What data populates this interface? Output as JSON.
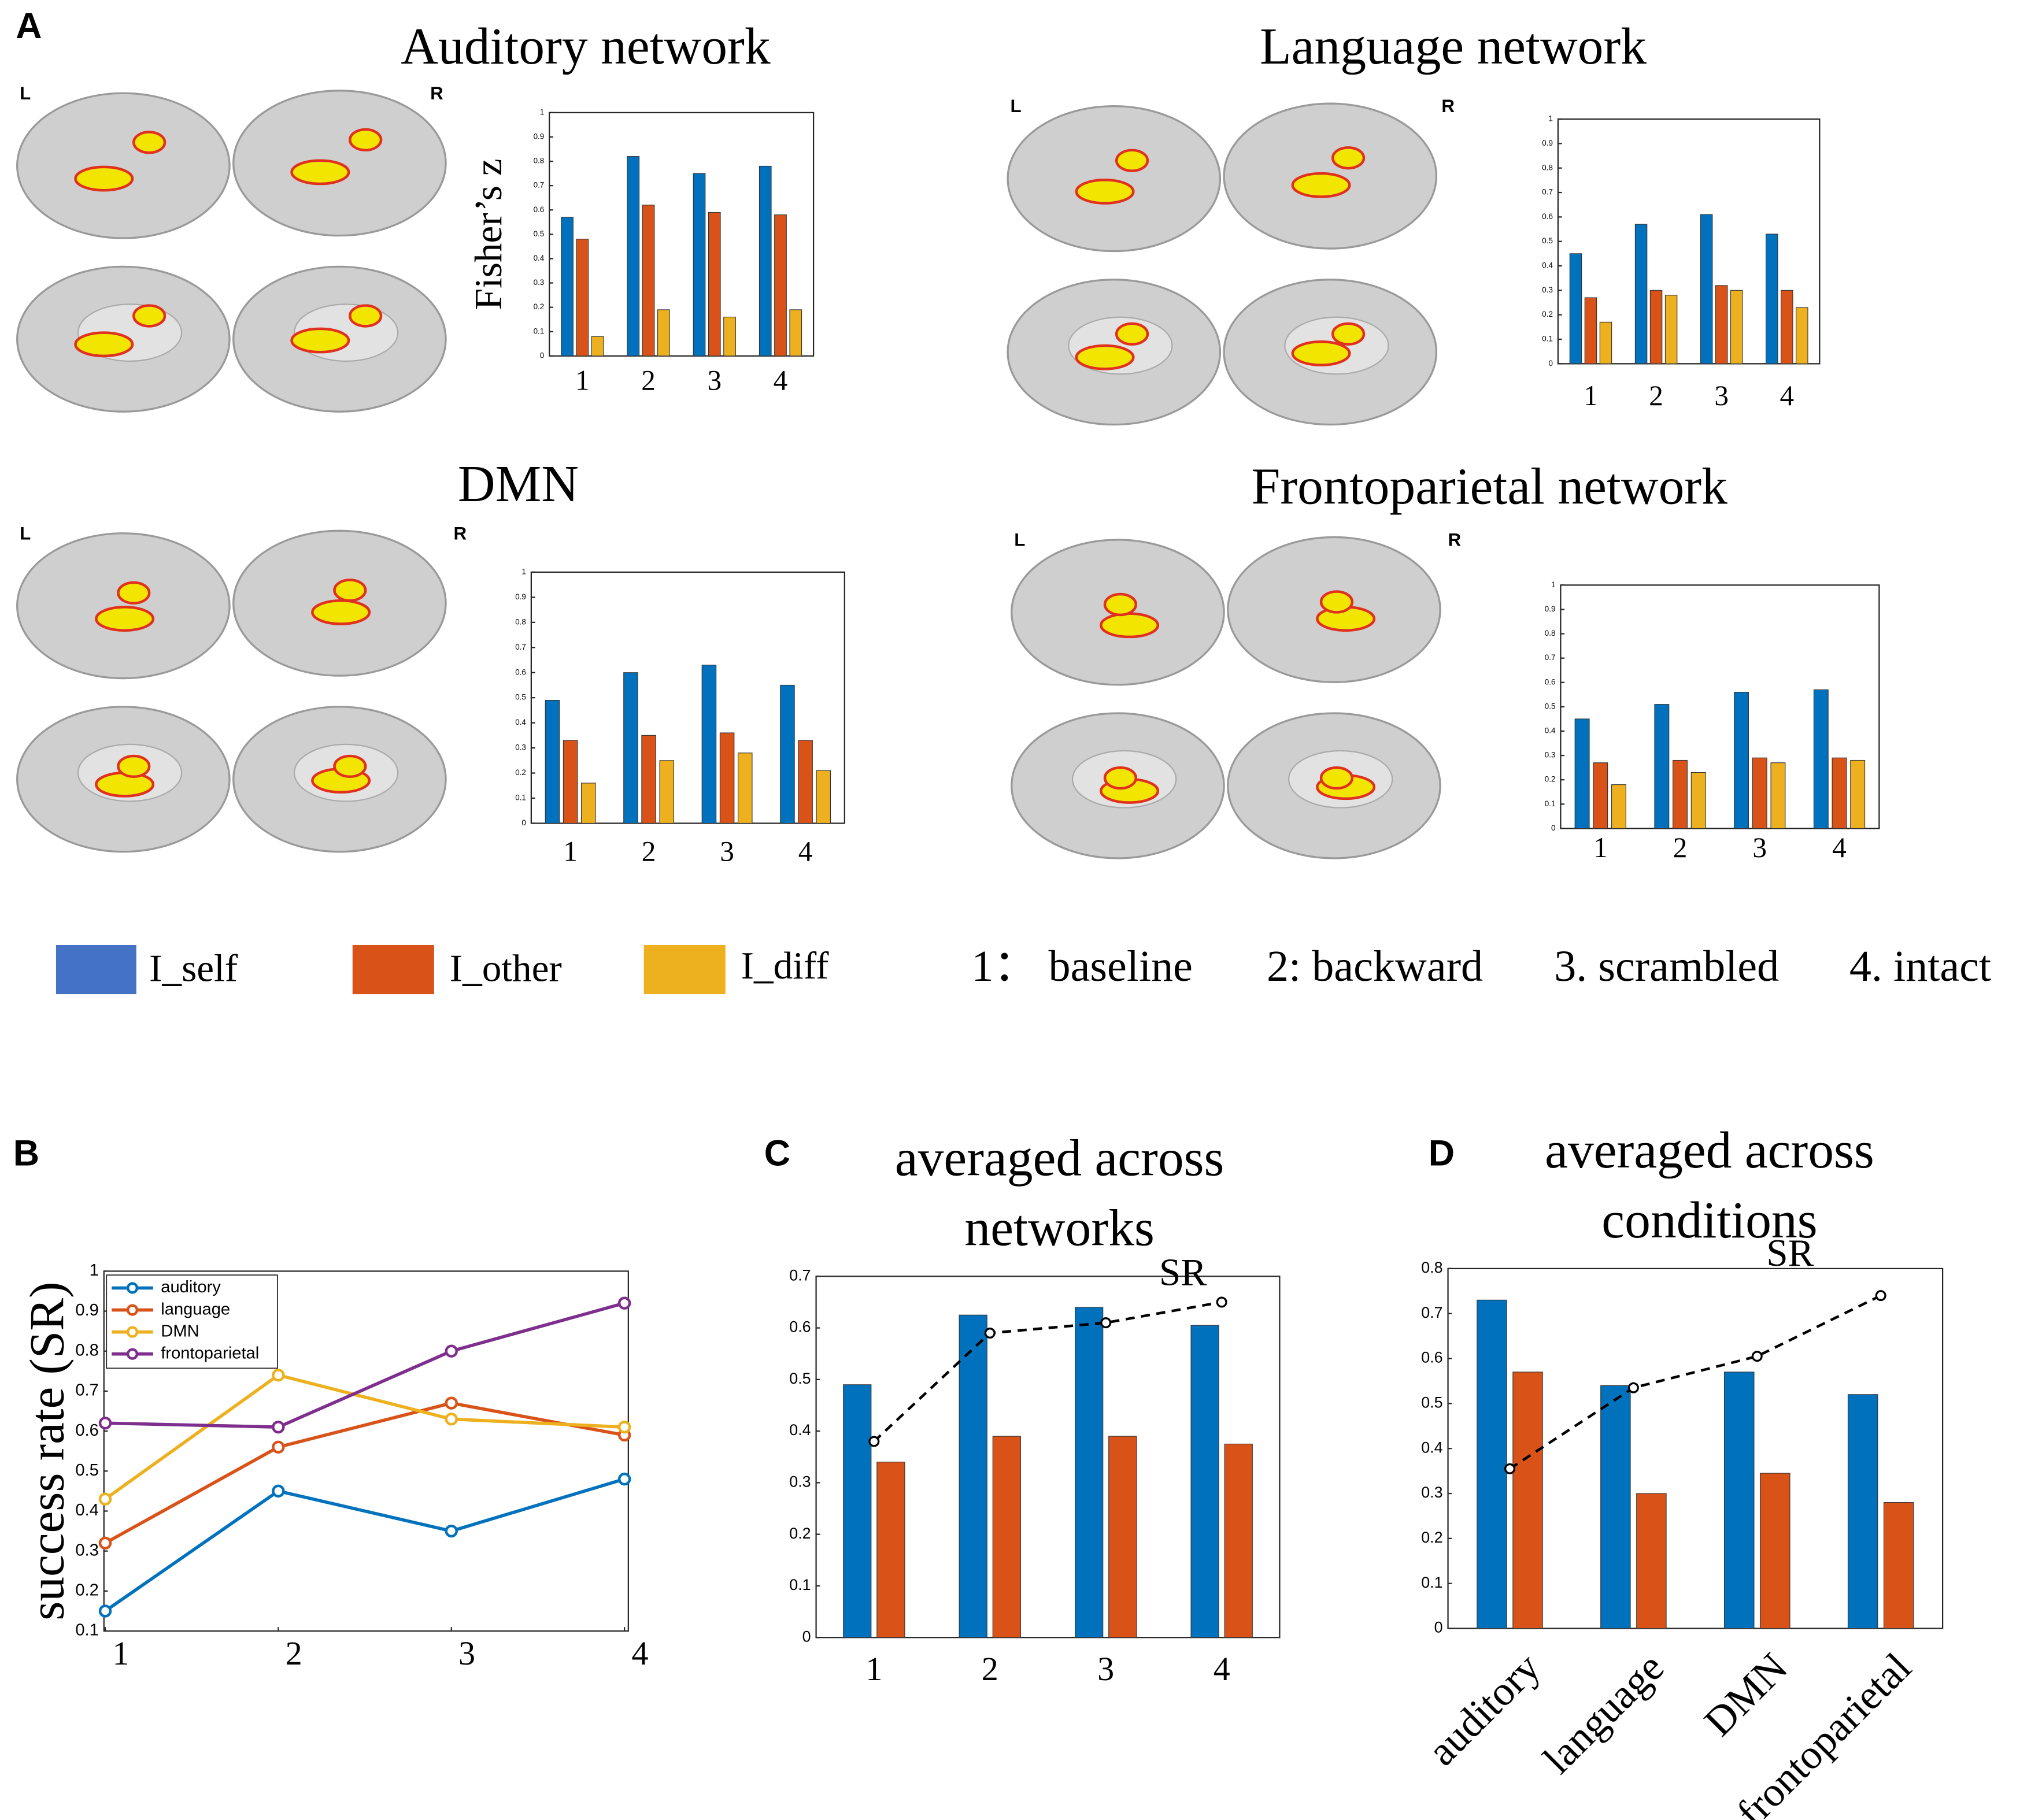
{
  "panel_labels": [
    "A",
    "B",
    "C",
    "D"
  ],
  "hemisphere_labels": [
    "L",
    "R"
  ],
  "condition_legend": [
    "1： baseline",
    "2: backward",
    "3. scrambled",
    "4.  intact"
  ],
  "chart_data": [
    {
      "type": "bar",
      "title": "Auditory network",
      "ylabel": "Fisher’s z",
      "categories": [
        "1",
        "2",
        "3",
        "4"
      ],
      "series": [
        {
          "name": "I_self",
          "color": "#0072BD",
          "values": [
            0.57,
            0.82,
            0.75,
            0.78
          ]
        },
        {
          "name": "I_other",
          "color": "#D95319",
          "values": [
            0.48,
            0.62,
            0.59,
            0.58
          ]
        },
        {
          "name": "I_diff",
          "color": "#EDB120",
          "values": [
            0.08,
            0.19,
            0.16,
            0.19
          ]
        }
      ],
      "ylim": [
        0,
        1
      ],
      "yticks": [
        0,
        0.1,
        0.2,
        0.3,
        0.4,
        0.5,
        0.6,
        0.7,
        0.8,
        0.9,
        1
      ]
    },
    {
      "type": "bar",
      "title": "Language network",
      "categories": [
        "1",
        "2",
        "3",
        "4"
      ],
      "series": [
        {
          "color": "#0072BD",
          "values": [
            0.45,
            0.57,
            0.61,
            0.53
          ]
        },
        {
          "color": "#D95319",
          "values": [
            0.27,
            0.3,
            0.32,
            0.3
          ]
        },
        {
          "color": "#EDB120",
          "values": [
            0.17,
            0.28,
            0.3,
            0.23
          ]
        }
      ],
      "ylim": [
        0,
        1
      ],
      "yticks": [
        0,
        0.1,
        0.2,
        0.3,
        0.4,
        0.5,
        0.6,
        0.7,
        0.8,
        0.9,
        1
      ]
    },
    {
      "type": "bar",
      "title": "DMN",
      "categories": [
        "1",
        "2",
        "3",
        "4"
      ],
      "series": [
        {
          "color": "#0072BD",
          "values": [
            0.49,
            0.6,
            0.63,
            0.55
          ]
        },
        {
          "color": "#D95319",
          "values": [
            0.33,
            0.35,
            0.36,
            0.33
          ]
        },
        {
          "color": "#EDB120",
          "values": [
            0.16,
            0.25,
            0.28,
            0.21
          ]
        }
      ],
      "ylim": [
        0,
        1
      ],
      "yticks": [
        0,
        0.1,
        0.2,
        0.3,
        0.4,
        0.5,
        0.6,
        0.7,
        0.8,
        0.9,
        1
      ]
    },
    {
      "type": "bar",
      "title": "Frontoparietal network",
      "categories": [
        "1",
        "2",
        "3",
        "4"
      ],
      "series": [
        {
          "color": "#0072BD",
          "values": [
            0.45,
            0.51,
            0.56,
            0.57
          ]
        },
        {
          "color": "#D95319",
          "values": [
            0.27,
            0.28,
            0.29,
            0.29
          ]
        },
        {
          "color": "#EDB120",
          "values": [
            0.18,
            0.23,
            0.27,
            0.28
          ]
        }
      ],
      "ylim": [
        0,
        1
      ],
      "yticks": [
        0,
        0.1,
        0.2,
        0.3,
        0.4,
        0.5,
        0.6,
        0.7,
        0.8,
        0.9,
        1
      ]
    },
    {
      "type": "line",
      "ylabel": "success rate (SR)",
      "x": [
        1,
        2,
        3,
        4
      ],
      "xlim": [
        1,
        4
      ],
      "xticks": [
        1,
        2,
        3,
        4
      ],
      "ylim": [
        0.1,
        1
      ],
      "yticks": [
        0.1,
        0.2,
        0.3,
        0.4,
        0.5,
        0.6,
        0.7,
        0.8,
        0.9,
        1
      ],
      "legend": "upper left",
      "series": [
        {
          "name": "auditory",
          "color": "#0072BD",
          "values": [
            0.15,
            0.45,
            0.35,
            0.48
          ]
        },
        {
          "name": "language",
          "color": "#D95319",
          "values": [
            0.32,
            0.56,
            0.67,
            0.59
          ]
        },
        {
          "name": "DMN",
          "color": "#EDB120",
          "values": [
            0.43,
            0.74,
            0.63,
            0.61
          ]
        },
        {
          "name": "frontoparietal",
          "color": "#7E2F8E",
          "values": [
            0.62,
            0.61,
            0.8,
            0.92
          ]
        }
      ]
    },
    {
      "type": "bar",
      "title": "averaged across networks",
      "categories": [
        "1",
        "2",
        "3",
        "4"
      ],
      "series": [
        {
          "color": "#0072BD",
          "values": [
            0.49,
            0.625,
            0.64,
            0.605
          ]
        },
        {
          "color": "#D95319",
          "values": [
            0.34,
            0.39,
            0.39,
            0.375
          ]
        },
        {
          "name": "SR",
          "type": "line",
          "linestyle": "dashed",
          "color": "#000000",
          "values": [
            0.38,
            0.59,
            0.61,
            0.65
          ]
        }
      ],
      "ylim": [
        0,
        0.7
      ],
      "yticks": [
        0,
        0.1,
        0.2,
        0.3,
        0.4,
        0.5,
        0.6,
        0.7
      ]
    },
    {
      "type": "bar",
      "title": "averaged across conditions",
      "categories": [
        "auditory",
        "language",
        "DMN",
        "frontoparietal"
      ],
      "rotate_labels": true,
      "series": [
        {
          "color": "#0072BD",
          "values": [
            0.73,
            0.54,
            0.57,
            0.52
          ]
        },
        {
          "color": "#D95319",
          "values": [
            0.57,
            0.3,
            0.345,
            0.28
          ]
        },
        {
          "name": "SR",
          "type": "line",
          "linestyle": "dashed",
          "color": "#000000",
          "values": [
            0.355,
            0.535,
            0.605,
            0.74
          ]
        }
      ],
      "ylim": [
        0,
        0.8
      ],
      "yticks": [
        0,
        0.1,
        0.2,
        0.3,
        0.4,
        0.5,
        0.6,
        0.7,
        0.8
      ]
    }
  ]
}
